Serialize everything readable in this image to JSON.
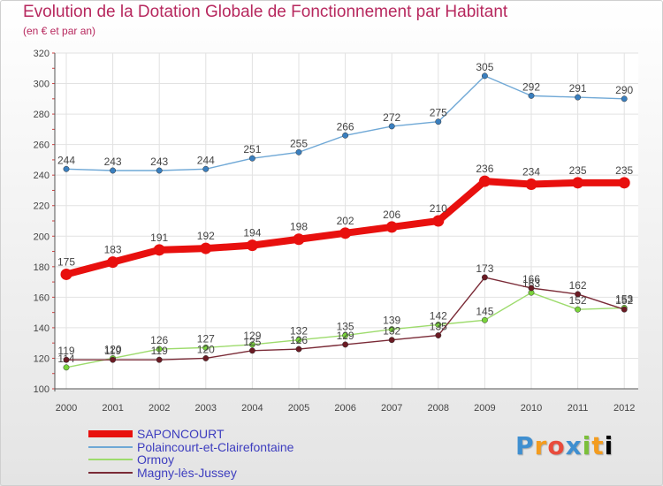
{
  "header": {
    "title": "Evolution de la Dotation Globale de Fonctionnement par Habitant",
    "subtitle": "(en € et par an)"
  },
  "brand": {
    "letters": [
      "P",
      "r",
      "o",
      "x",
      "i",
      "t",
      "i"
    ]
  },
  "chart_data": {
    "type": "line",
    "title": "Evolution de la Dotation Globale de Fonctionnement par Habitant",
    "subtitle": "(en € et par an)",
    "xlabel": "",
    "ylabel": "",
    "x": [
      "2000",
      "2001",
      "2002",
      "2003",
      "2004",
      "2005",
      "2006",
      "2007",
      "2008",
      "2009",
      "2010",
      "2011",
      "2012"
    ],
    "ylim": [
      100,
      320
    ],
    "yticks": [
      100,
      120,
      140,
      160,
      180,
      200,
      220,
      240,
      260,
      280,
      300,
      320
    ],
    "grid": true,
    "legend_position": "bottom-left",
    "series": [
      {
        "name": "SAPONCOURT",
        "color": "#e8100e",
        "point_color": "#e8100e",
        "emphasis": true,
        "values": [
          175,
          183,
          191,
          192,
          194,
          198,
          202,
          206,
          210,
          236,
          234,
          235,
          235
        ]
      },
      {
        "name": "Polaincourt-et-Clairefontaine",
        "color": "#6fa8d6",
        "point_color": "#3a7fbf",
        "emphasis": false,
        "values": [
          244,
          243,
          243,
          244,
          251,
          255,
          266,
          272,
          275,
          305,
          292,
          291,
          290
        ]
      },
      {
        "name": "Ormoy",
        "color": "#9ddb6c",
        "point_color": "#79d33a",
        "emphasis": false,
        "values": [
          114,
          120,
          126,
          127,
          129,
          132,
          135,
          139,
          142,
          145,
          163,
          152,
          153
        ]
      },
      {
        "name": "Magny-lès-Jussey",
        "color": "#7a2a36",
        "point_color": "#6b1b24",
        "emphasis": false,
        "values": [
          119,
          119,
          119,
          120,
          125,
          126,
          129,
          132,
          135,
          173,
          166,
          162,
          152
        ]
      }
    ]
  }
}
